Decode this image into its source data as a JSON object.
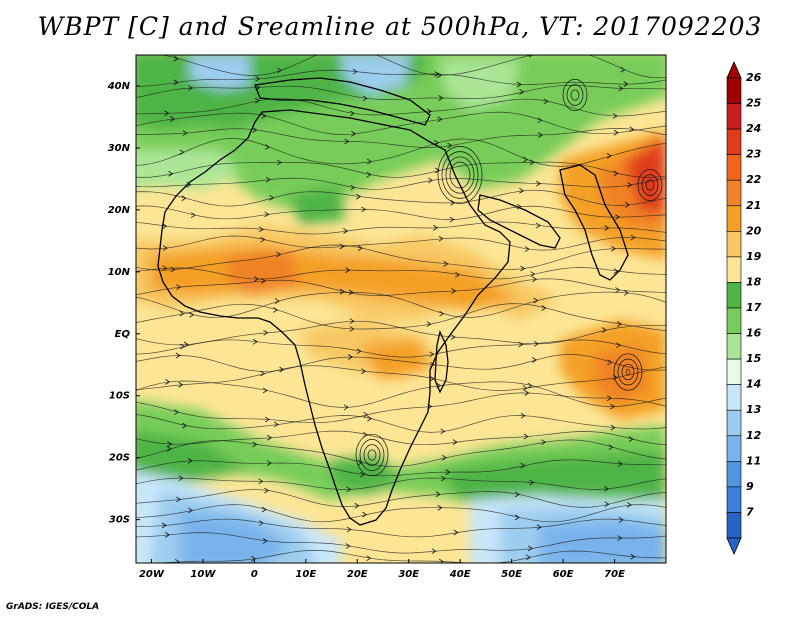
{
  "title": "WBPT [C] and Sreamline at 500hPa, VT: 2017092203",
  "credit": "GrADS: IGES/COLA",
  "map": {
    "lon_range": [
      -23,
      80
    ],
    "lat_range": [
      -37,
      45
    ],
    "lat_labels": [
      "40N",
      "30N",
      "20N",
      "10N",
      "EQ",
      "10S",
      "20S",
      "30S"
    ],
    "lat_values": [
      40,
      30,
      20,
      10,
      0,
      -10,
      -20,
      -30
    ],
    "lon_labels": [
      "20W",
      "10W",
      "0",
      "10E",
      "20E",
      "30E",
      "40E",
      "50E",
      "60E",
      "70E"
    ],
    "lon_values": [
      -20,
      -10,
      0,
      10,
      20,
      30,
      40,
      50,
      60,
      70
    ]
  },
  "colorbar": {
    "labels": [
      "26",
      "25",
      "24",
      "23",
      "22",
      "21",
      "20",
      "19",
      "18",
      "17",
      "16",
      "15",
      "14",
      "13",
      "12",
      "11",
      "9",
      "7"
    ],
    "colors": [
      "#a00000",
      "#c81e1e",
      "#e03c1c",
      "#f0641e",
      "#f08228",
      "#f4a028",
      "#f8c864",
      "#fce696",
      "#50b446",
      "#78cd5a",
      "#aae696",
      "#e6fae6",
      "#c8e6fa",
      "#9ccdf0",
      "#78b4eb",
      "#5096e1",
      "#3c82dc",
      "#2864c8"
    ]
  }
}
